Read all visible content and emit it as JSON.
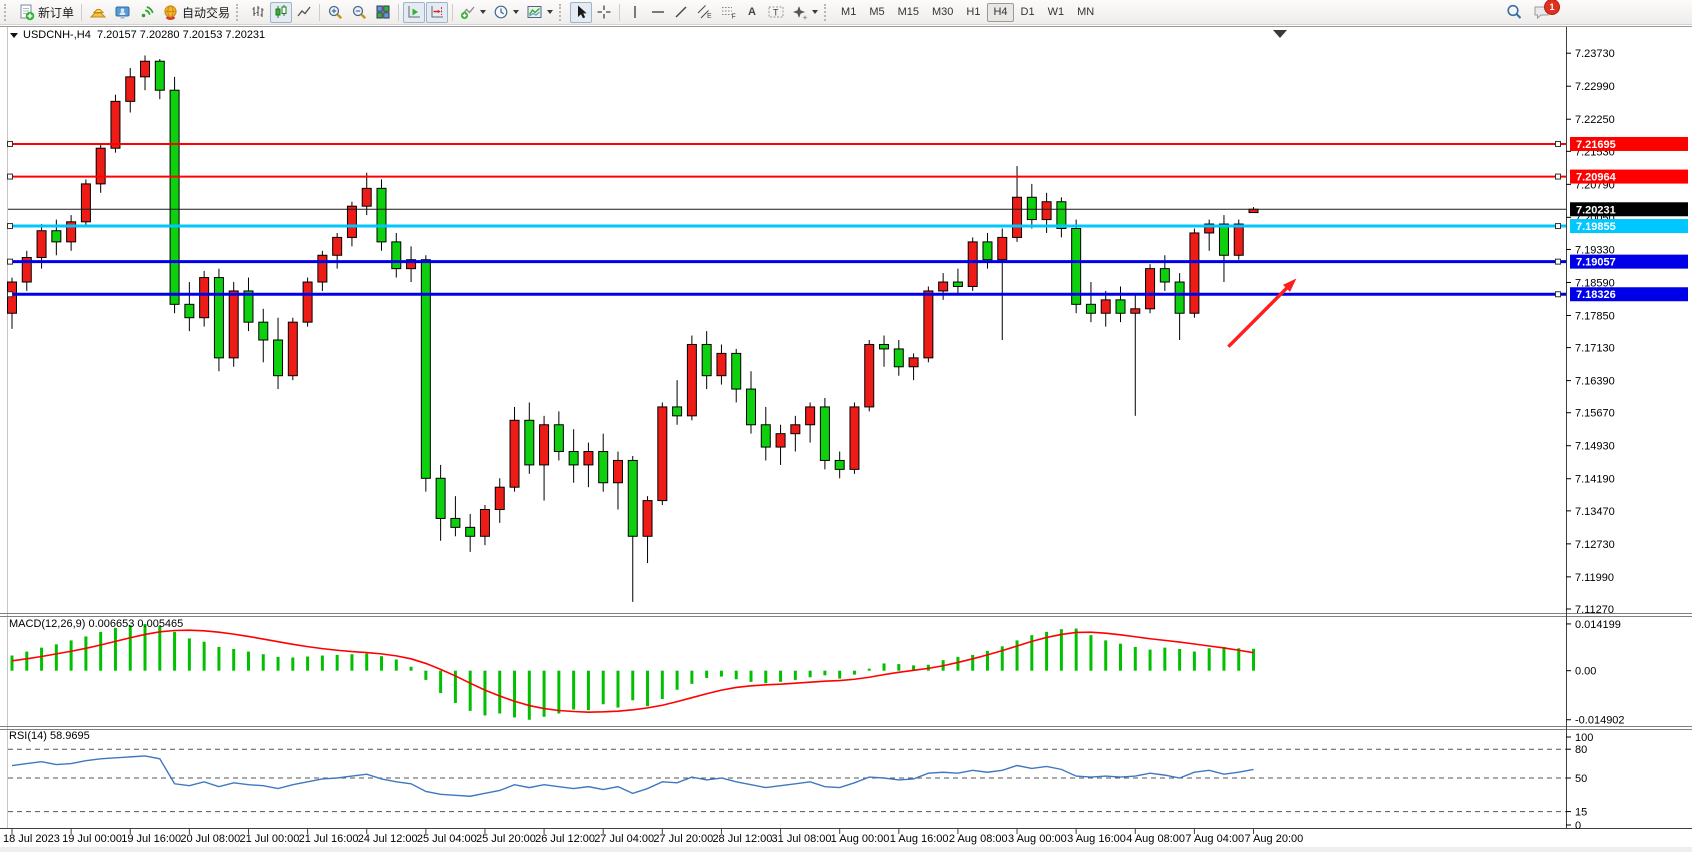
{
  "toolbar": {
    "new_order_label": "新订单",
    "auto_trading_label": "自动交易",
    "icon_glyphs": {
      "text_tool": "A",
      "text_label_tool": "T",
      "channel_tool": "E",
      "fibonacci_tool": "F"
    },
    "timeframes": [
      "M1",
      "M5",
      "M15",
      "M30",
      "H1",
      "H4",
      "D1",
      "W1",
      "MN"
    ],
    "active_timeframe": "H4",
    "notification_count": "1"
  },
  "chart": {
    "header": "USDCNH-,H4  7.20157 7.20280 7.20153 7.20231"
  },
  "chart_data": {
    "type": "candlestick",
    "symbol": "USDCNH-",
    "timeframe": "H4",
    "up_color": "#ee1c16",
    "down_color": "#0fd00f",
    "y_range": [
      7.1118,
      7.2425
    ],
    "price_axis_ticks": [
      "7.23730",
      "7.22990",
      "7.22250",
      "7.21530",
      "7.20790",
      "7.20050",
      "7.19330",
      "7.18590",
      "7.17850",
      "7.17130",
      "7.16390",
      "7.15670",
      "7.14930",
      "7.14190",
      "7.13470",
      "7.12730",
      "7.11990",
      "7.11270"
    ],
    "time_axis_labels": [
      "18 Jul 2023",
      "19 Jul 00:00",
      "19 Jul 16:00",
      "20 Jul 08:00",
      "21 Jul 00:00",
      "21 Jul 16:00",
      "24 Jul 12:00",
      "25 Jul 04:00",
      "25 Jul 20:00",
      "26 Jul 12:00",
      "27 Jul 04:00",
      "27 Jul 20:00",
      "28 Jul 12:00",
      "31 Jul 08:00",
      "1 Aug 00:00",
      "1 Aug 16:00",
      "2 Aug 08:00",
      "3 Aug 00:00",
      "3 Aug 16:00",
      "4 Aug 08:00",
      "7 Aug 04:00",
      "7 Aug 20:00"
    ],
    "bars_per_time_label": 4,
    "ohlc": [
      [
        7.179,
        7.187,
        7.1755,
        7.186
      ],
      [
        7.186,
        7.193,
        7.184,
        7.1915
      ],
      [
        7.1915,
        7.199,
        7.189,
        7.1975
      ],
      [
        7.1975,
        7.2,
        7.192,
        7.195
      ],
      [
        7.195,
        7.201,
        7.193,
        7.1995
      ],
      [
        7.1995,
        7.209,
        7.1985,
        7.208
      ],
      [
        7.208,
        7.217,
        7.206,
        7.216
      ],
      [
        7.216,
        7.228,
        7.215,
        7.2265
      ],
      [
        7.2265,
        7.234,
        7.224,
        7.232
      ],
      [
        7.232,
        7.2368,
        7.229,
        7.2355
      ],
      [
        7.2355,
        7.236,
        7.227,
        7.229
      ],
      [
        7.229,
        7.232,
        7.179,
        7.181
      ],
      [
        7.181,
        7.186,
        7.175,
        7.178
      ],
      [
        7.178,
        7.1885,
        7.176,
        7.187
      ],
      [
        7.187,
        7.189,
        7.166,
        7.169
      ],
      [
        7.169,
        7.186,
        7.167,
        7.184
      ],
      [
        7.184,
        7.187,
        7.175,
        7.177
      ],
      [
        7.177,
        7.18,
        7.168,
        7.173
      ],
      [
        7.173,
        7.178,
        7.162,
        7.165
      ],
      [
        7.165,
        7.178,
        7.164,
        7.177
      ],
      [
        7.177,
        7.187,
        7.176,
        7.186
      ],
      [
        7.186,
        7.193,
        7.184,
        7.192
      ],
      [
        7.192,
        7.197,
        7.189,
        7.196
      ],
      [
        7.196,
        7.204,
        7.194,
        7.203
      ],
      [
        7.203,
        7.2105,
        7.201,
        7.207
      ],
      [
        7.207,
        7.209,
        7.193,
        7.195
      ],
      [
        7.195,
        7.197,
        7.187,
        7.189
      ],
      [
        7.189,
        7.194,
        7.186,
        7.191
      ],
      [
        7.191,
        7.192,
        7.139,
        7.142
      ],
      [
        7.142,
        7.145,
        7.128,
        7.133
      ],
      [
        7.133,
        7.138,
        7.129,
        7.131
      ],
      [
        7.131,
        7.134,
        7.1255,
        7.129
      ],
      [
        7.129,
        7.136,
        7.127,
        7.135
      ],
      [
        7.135,
        7.142,
        7.132,
        7.14
      ],
      [
        7.14,
        7.158,
        7.139,
        7.155
      ],
      [
        7.155,
        7.159,
        7.143,
        7.145
      ],
      [
        7.145,
        7.156,
        7.137,
        7.154
      ],
      [
        7.154,
        7.157,
        7.146,
        7.148
      ],
      [
        7.148,
        7.153,
        7.141,
        7.145
      ],
      [
        7.145,
        7.15,
        7.14,
        7.148
      ],
      [
        7.148,
        7.152,
        7.139,
        7.141
      ],
      [
        7.141,
        7.148,
        7.135,
        7.146
      ],
      [
        7.146,
        7.147,
        7.1143,
        7.129
      ],
      [
        7.129,
        7.138,
        7.123,
        7.137
      ],
      [
        7.137,
        7.159,
        7.136,
        7.158
      ],
      [
        7.158,
        7.164,
        7.154,
        7.156
      ],
      [
        7.156,
        7.174,
        7.155,
        7.172
      ],
      [
        7.172,
        7.175,
        7.162,
        7.165
      ],
      [
        7.165,
        7.172,
        7.163,
        7.17
      ],
      [
        7.17,
        7.171,
        7.159,
        7.162
      ],
      [
        7.162,
        7.166,
        7.152,
        7.154
      ],
      [
        7.154,
        7.158,
        7.146,
        7.149
      ],
      [
        7.149,
        7.154,
        7.145,
        7.152
      ],
      [
        7.152,
        7.156,
        7.148,
        7.154
      ],
      [
        7.154,
        7.159,
        7.15,
        7.158
      ],
      [
        7.158,
        7.16,
        7.144,
        7.146
      ],
      [
        7.146,
        7.148,
        7.142,
        7.144
      ],
      [
        7.144,
        7.159,
        7.143,
        7.158
      ],
      [
        7.158,
        7.173,
        7.157,
        7.172
      ],
      [
        7.172,
        7.174,
        7.167,
        7.171
      ],
      [
        7.171,
        7.173,
        7.165,
        7.167
      ],
      [
        7.167,
        7.17,
        7.164,
        7.169
      ],
      [
        7.169,
        7.185,
        7.168,
        7.184
      ],
      [
        7.184,
        7.188,
        7.182,
        7.186
      ],
      [
        7.186,
        7.189,
        7.183,
        7.185
      ],
      [
        7.185,
        7.196,
        7.184,
        7.195
      ],
      [
        7.195,
        7.197,
        7.189,
        7.191
      ],
      [
        7.191,
        7.198,
        7.173,
        7.196
      ],
      [
        7.196,
        7.212,
        7.195,
        7.205
      ],
      [
        7.205,
        7.208,
        7.198,
        7.2
      ],
      [
        7.2,
        7.206,
        7.197,
        7.204
      ],
      [
        7.204,
        7.205,
        7.196,
        7.198
      ],
      [
        7.198,
        7.2,
        7.179,
        7.181
      ],
      [
        7.181,
        7.186,
        7.177,
        7.179
      ],
      [
        7.179,
        7.184,
        7.176,
        7.182
      ],
      [
        7.182,
        7.185,
        7.177,
        7.179
      ],
      [
        7.179,
        7.183,
        7.156,
        7.18
      ],
      [
        7.18,
        7.19,
        7.179,
        7.189
      ],
      [
        7.189,
        7.192,
        7.184,
        7.186
      ],
      [
        7.186,
        7.188,
        7.173,
        7.179
      ],
      [
        7.179,
        7.198,
        7.178,
        7.197
      ],
      [
        7.197,
        7.2,
        7.193,
        7.199
      ],
      [
        7.199,
        7.201,
        7.186,
        7.192
      ],
      [
        7.192,
        7.2,
        7.191,
        7.199
      ],
      [
        7.20157,
        7.2028,
        7.20153,
        7.20231
      ]
    ],
    "levels": [
      {
        "label": "7.21695",
        "value": 7.21695,
        "color": "#ff0000",
        "width": 2
      },
      {
        "label": "7.20964",
        "value": 7.20964,
        "color": "#ff0000",
        "width": 2
      },
      {
        "label": "7.19855",
        "value": 7.19855,
        "color": "#00c8ff",
        "width": 3
      },
      {
        "label": "7.19057",
        "value": 7.19057,
        "color": "#0000e8",
        "width": 3
      },
      {
        "label": "7.18326",
        "value": 7.18326,
        "color": "#0000e8",
        "width": 3
      }
    ],
    "current_price": {
      "label": "7.20231",
      "value": 7.20231,
      "color": "#000000"
    },
    "indicators": [
      {
        "name": "MACD",
        "label": "MACD(12,26,9) 0.006653 0.005465",
        "axis_ticks": [
          "0.014199",
          "0.00",
          "-0.014902"
        ],
        "axis_values": [
          0.014199,
          0,
          -0.014902
        ],
        "histogram_color": "#00c000",
        "signal_color": "#ff0000",
        "histogram": [
          0.0046,
          0.0058,
          0.007,
          0.008,
          0.0092,
          0.0104,
          0.0118,
          0.013,
          0.0138,
          0.0142,
          0.0136,
          0.0118,
          0.0098,
          0.0088,
          0.0072,
          0.0066,
          0.0058,
          0.005,
          0.0042,
          0.004,
          0.0043,
          0.0046,
          0.0048,
          0.005,
          0.0052,
          0.0044,
          0.0034,
          0.0012,
          -0.0028,
          -0.0068,
          -0.0098,
          -0.0122,
          -0.0136,
          -0.013,
          -0.0142,
          -0.0149,
          -0.014,
          -0.013,
          -0.0118,
          -0.012,
          -0.0102,
          -0.0112,
          -0.009,
          -0.0108,
          -0.0086,
          -0.0058,
          -0.004,
          -0.0022,
          -0.0018,
          -0.0026,
          -0.0034,
          -0.0038,
          -0.0034,
          -0.0028,
          -0.002,
          -0.0014,
          -0.0024,
          -0.0012,
          0.0006,
          0.0022,
          0.002,
          0.0016,
          0.0018,
          0.0032,
          0.0042,
          0.0048,
          0.006,
          0.0074,
          0.0092,
          0.0108,
          0.0118,
          0.0126,
          0.0128,
          0.0108,
          0.0092,
          0.0082,
          0.0072,
          0.0064,
          0.007,
          0.0066,
          0.0058,
          0.0068,
          0.0072,
          0.0068,
          0.006653
        ],
        "signal": [
          0.003,
          0.0036,
          0.0043,
          0.0051,
          0.0059,
          0.0068,
          0.0078,
          0.0089,
          0.01,
          0.011,
          0.0118,
          0.0122,
          0.0123,
          0.0121,
          0.0117,
          0.0111,
          0.0104,
          0.0096,
          0.0088,
          0.008,
          0.0073,
          0.0067,
          0.0062,
          0.0058,
          0.0055,
          0.0051,
          0.0045,
          0.0036,
          0.0022,
          0.0004,
          -0.0016,
          -0.0038,
          -0.0059,
          -0.0077,
          -0.0093,
          -0.0106,
          -0.0115,
          -0.0121,
          -0.0124,
          -0.0126,
          -0.0125,
          -0.0123,
          -0.0119,
          -0.0113,
          -0.0105,
          -0.0094,
          -0.0082,
          -0.007,
          -0.0059,
          -0.0051,
          -0.0046,
          -0.0043,
          -0.0041,
          -0.0038,
          -0.0035,
          -0.0032,
          -0.003,
          -0.0026,
          -0.002,
          -0.0012,
          -0.0005,
          0.0001,
          0.0007,
          0.0015,
          0.0025,
          0.0036,
          0.0048,
          0.0061,
          0.0075,
          0.0089,
          0.0101,
          0.011,
          0.0116,
          0.0117,
          0.0114,
          0.0109,
          0.0103,
          0.0097,
          0.0092,
          0.0087,
          0.0081,
          0.0075,
          0.0069,
          0.0062,
          0.005465
        ]
      },
      {
        "name": "RSI",
        "label": "RSI(14) 58.9695",
        "axis_ticks": [
          "100",
          "80",
          "50",
          "15",
          "0"
        ],
        "axis_values": [
          100,
          80,
          50,
          15,
          0
        ],
        "levels": [
          80,
          50,
          15
        ],
        "line_color": "#3e78c0",
        "values": [
          63,
          65,
          67,
          64,
          65,
          68,
          70,
          71,
          72,
          73,
          70,
          44,
          42,
          46,
          41,
          45,
          43,
          42,
          39,
          43,
          46,
          49,
          50,
          52,
          54,
          49,
          46,
          44,
          36,
          33,
          32,
          31,
          34,
          37,
          43,
          40,
          43,
          41,
          39,
          41,
          38,
          41,
          34,
          39,
          46,
          45,
          51,
          48,
          50,
          46,
          43,
          40,
          42,
          44,
          46,
          41,
          40,
          45,
          51,
          50,
          48,
          49,
          55,
          56,
          55,
          58,
          56,
          58,
          63,
          60,
          62,
          59,
          52,
          51,
          52,
          51,
          52,
          55,
          53,
          50,
          56,
          58,
          54,
          56,
          58.97
        ]
      }
    ],
    "annotations": [
      {
        "type": "arrow",
        "color": "#ff1e1e",
        "from": {
          "bar": 82.3,
          "price": 7.1715
        },
        "to": {
          "bar": 86.9,
          "price": 7.1868
        }
      }
    ]
  }
}
